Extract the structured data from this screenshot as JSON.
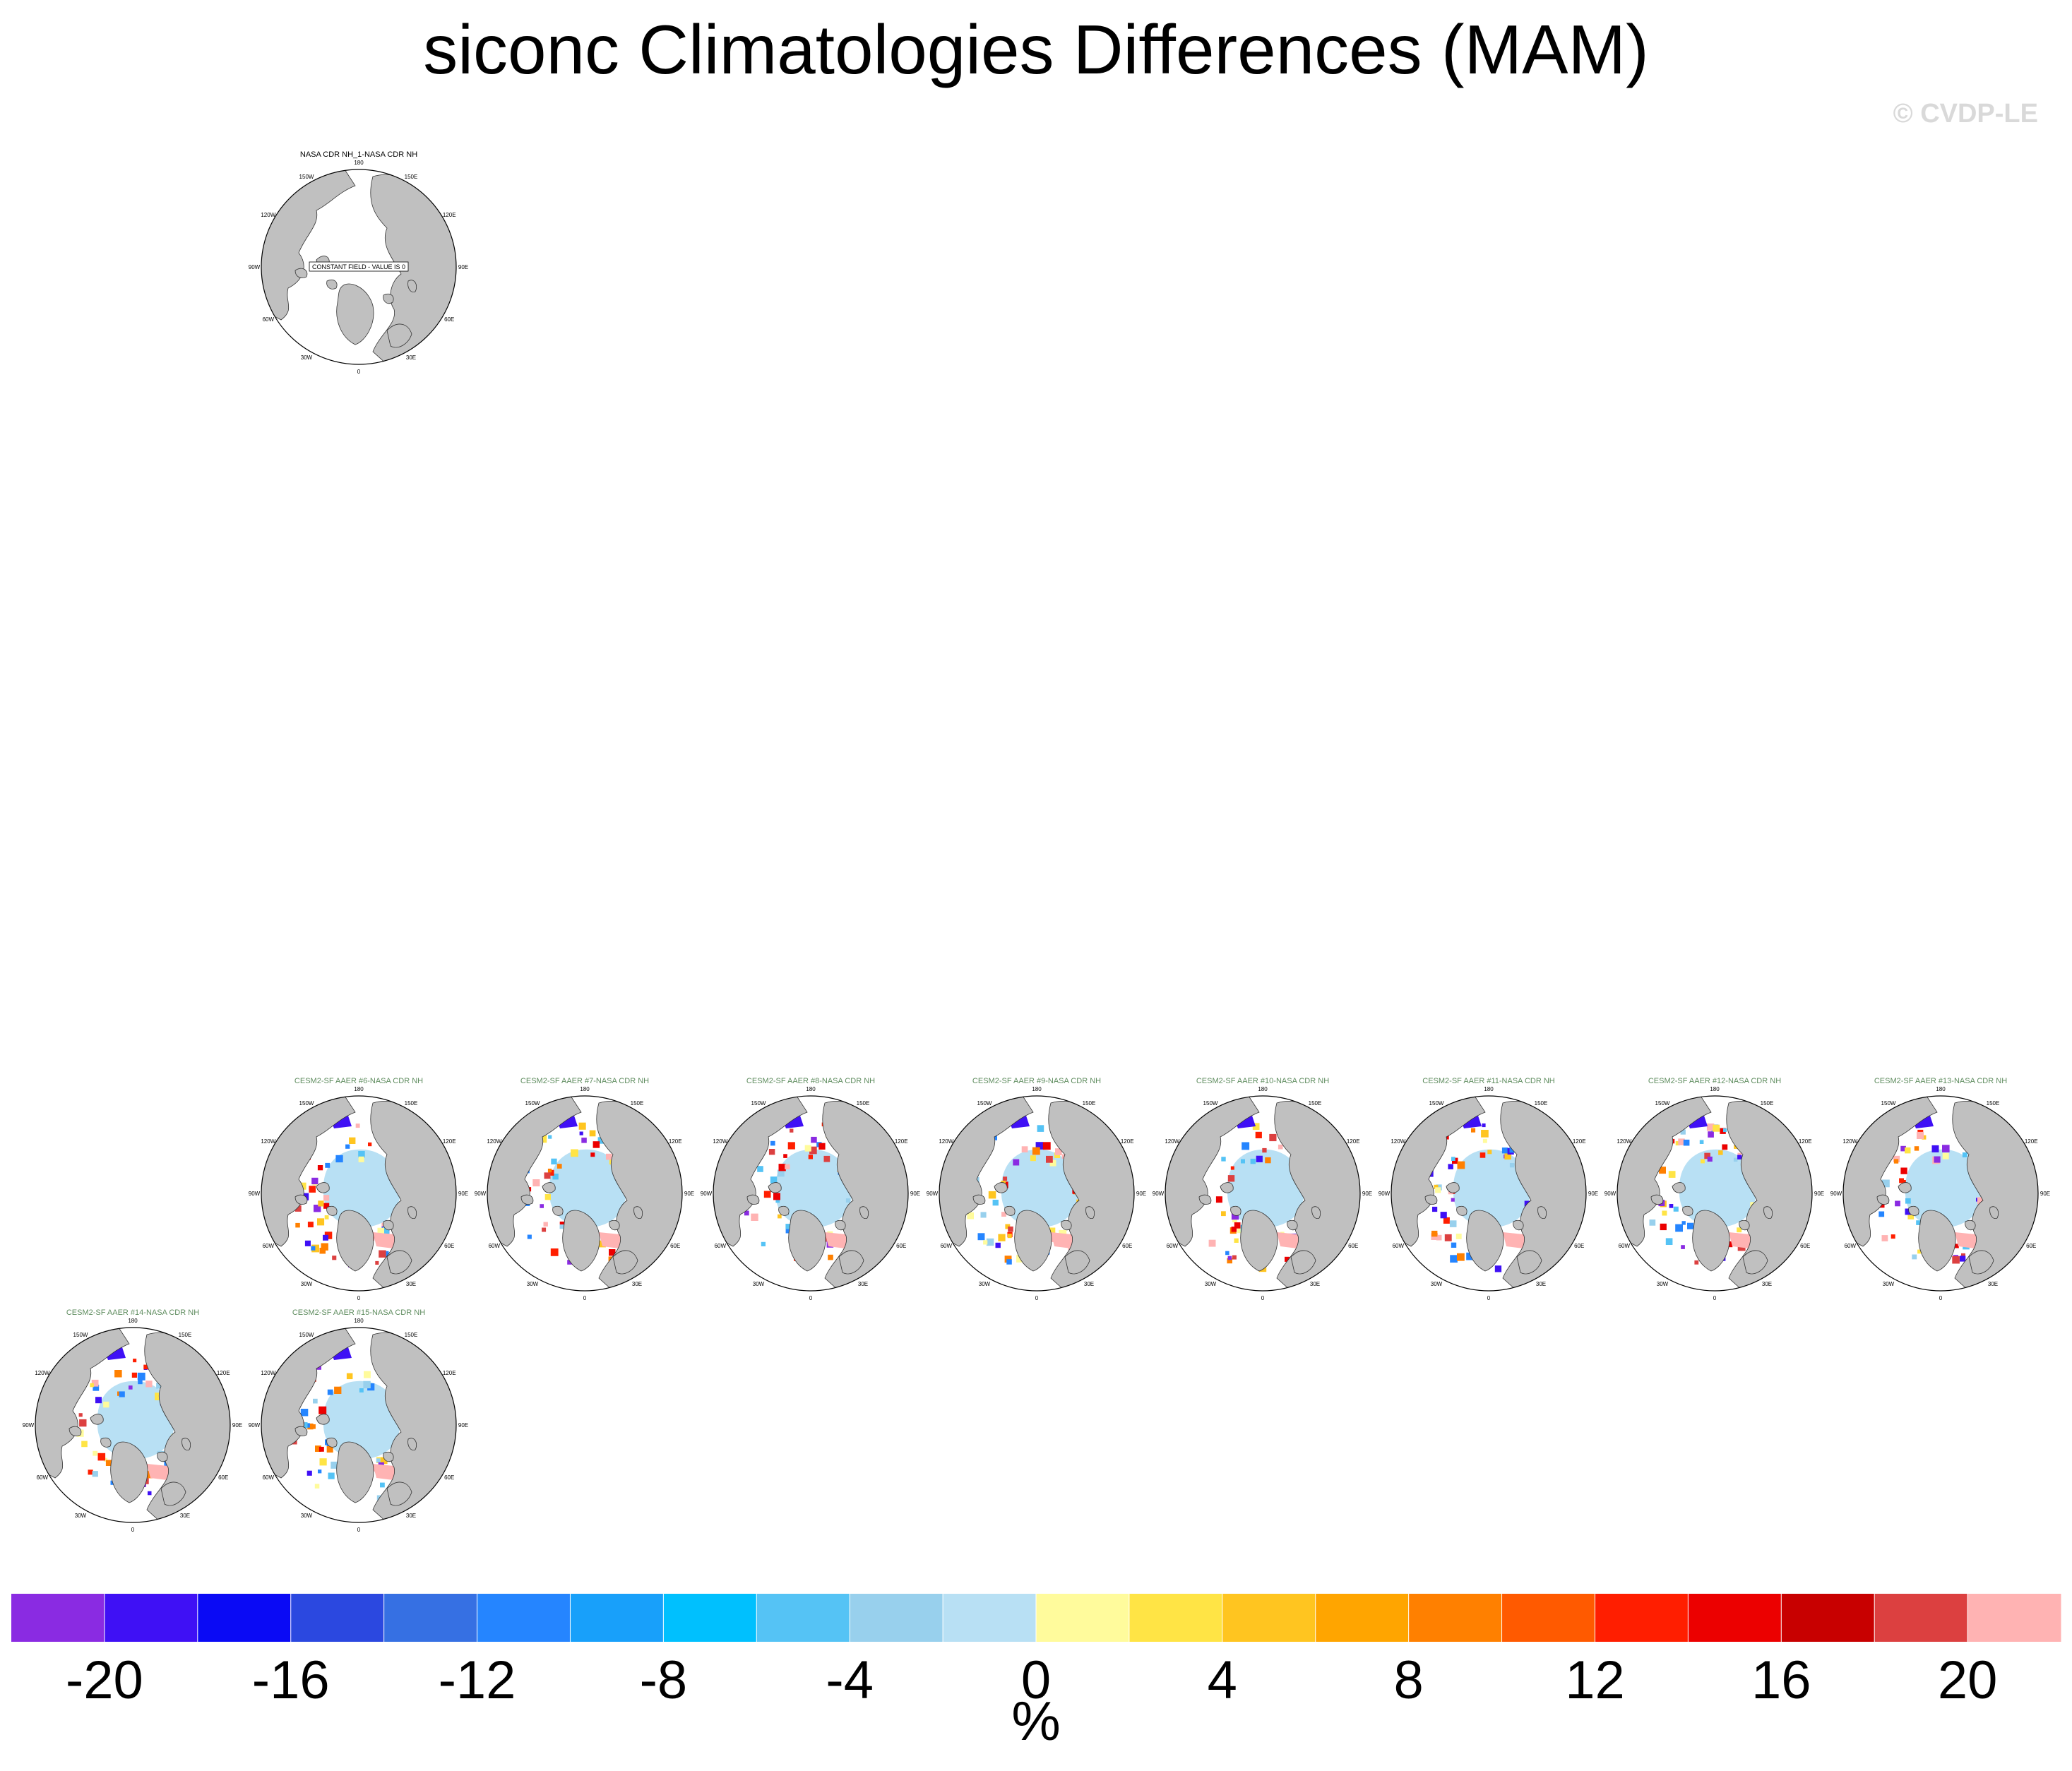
{
  "title": "siconc Climatologies Differences (MAM)",
  "copyright": "© CVDP-LE",
  "panels": [
    {
      "title": "NASA CDR NH_1-NASA CDR NH",
      "constant_label": "CONSTANT FIELD - VALUE IS 0",
      "kind": "constant"
    },
    {
      "title": "CESM2-SF AAER #6-NASA CDR NH",
      "kind": "diff"
    },
    {
      "title": "CESM2-SF AAER #7-NASA CDR NH",
      "kind": "diff"
    },
    {
      "title": "CESM2-SF AAER #8-NASA CDR NH",
      "kind": "diff"
    },
    {
      "title": "CESM2-SF AAER #9-NASA CDR NH",
      "kind": "diff"
    },
    {
      "title": "CESM2-SF AAER #10-NASA CDR NH",
      "kind": "diff"
    },
    {
      "title": "CESM2-SF AAER #11-NASA CDR NH",
      "kind": "diff"
    },
    {
      "title": "CESM2-SF AAER #12-NASA CDR NH",
      "kind": "diff"
    },
    {
      "title": "CESM2-SF AAER #13-NASA CDR NH",
      "kind": "diff"
    },
    {
      "title": "CESM2-SF AAER #14-NASA CDR NH",
      "kind": "diff"
    },
    {
      "title": "CESM2-SF AAER #15-NASA CDR NH",
      "kind": "diff"
    }
  ],
  "map_labels": [
    "180",
    "150E",
    "120E",
    "90E",
    "60E",
    "30E",
    "0",
    "30W",
    "60W",
    "90W",
    "120W",
    "150W"
  ],
  "chart_data": {
    "type": "heatmap",
    "title": "siconc Climatologies Differences (MAM)",
    "projection": "north polar stereographic",
    "colorbar": {
      "unit": "%",
      "tick_labels": [
        "-20",
        "-16",
        "-12",
        "-8",
        "-4",
        "0",
        "4",
        "8",
        "12",
        "16",
        "20"
      ],
      "levels": [
        -22,
        -20,
        -18,
        -16,
        -14,
        -12,
        -10,
        -8,
        -6,
        -4,
        -2,
        0,
        2,
        4,
        6,
        8,
        10,
        12,
        14,
        16,
        18,
        20,
        22
      ],
      "colors": [
        "#8a2be2",
        "#3f10f5",
        "#0a0af5",
        "#2b48e0",
        "#3670e3",
        "#2585ff",
        "#18a0fa",
        "#00c0fe",
        "#55c3f5",
        "#98d0ed",
        "#b8e0f4",
        "#fffb9c",
        "#ffe445",
        "#ffc520",
        "#ffa500",
        "#ff8000",
        "#ff5a00",
        "#ff1e00",
        "#ec0000",
        "#c80000",
        "#dc4040",
        "#ffb3b3"
      ]
    }
  },
  "colors": {
    "land": "#c0c0c0",
    "ice_zero": "#b8e0f4",
    "panel_title_diff": "#5e8c5e",
    "panel_title_const": "#000000"
  }
}
